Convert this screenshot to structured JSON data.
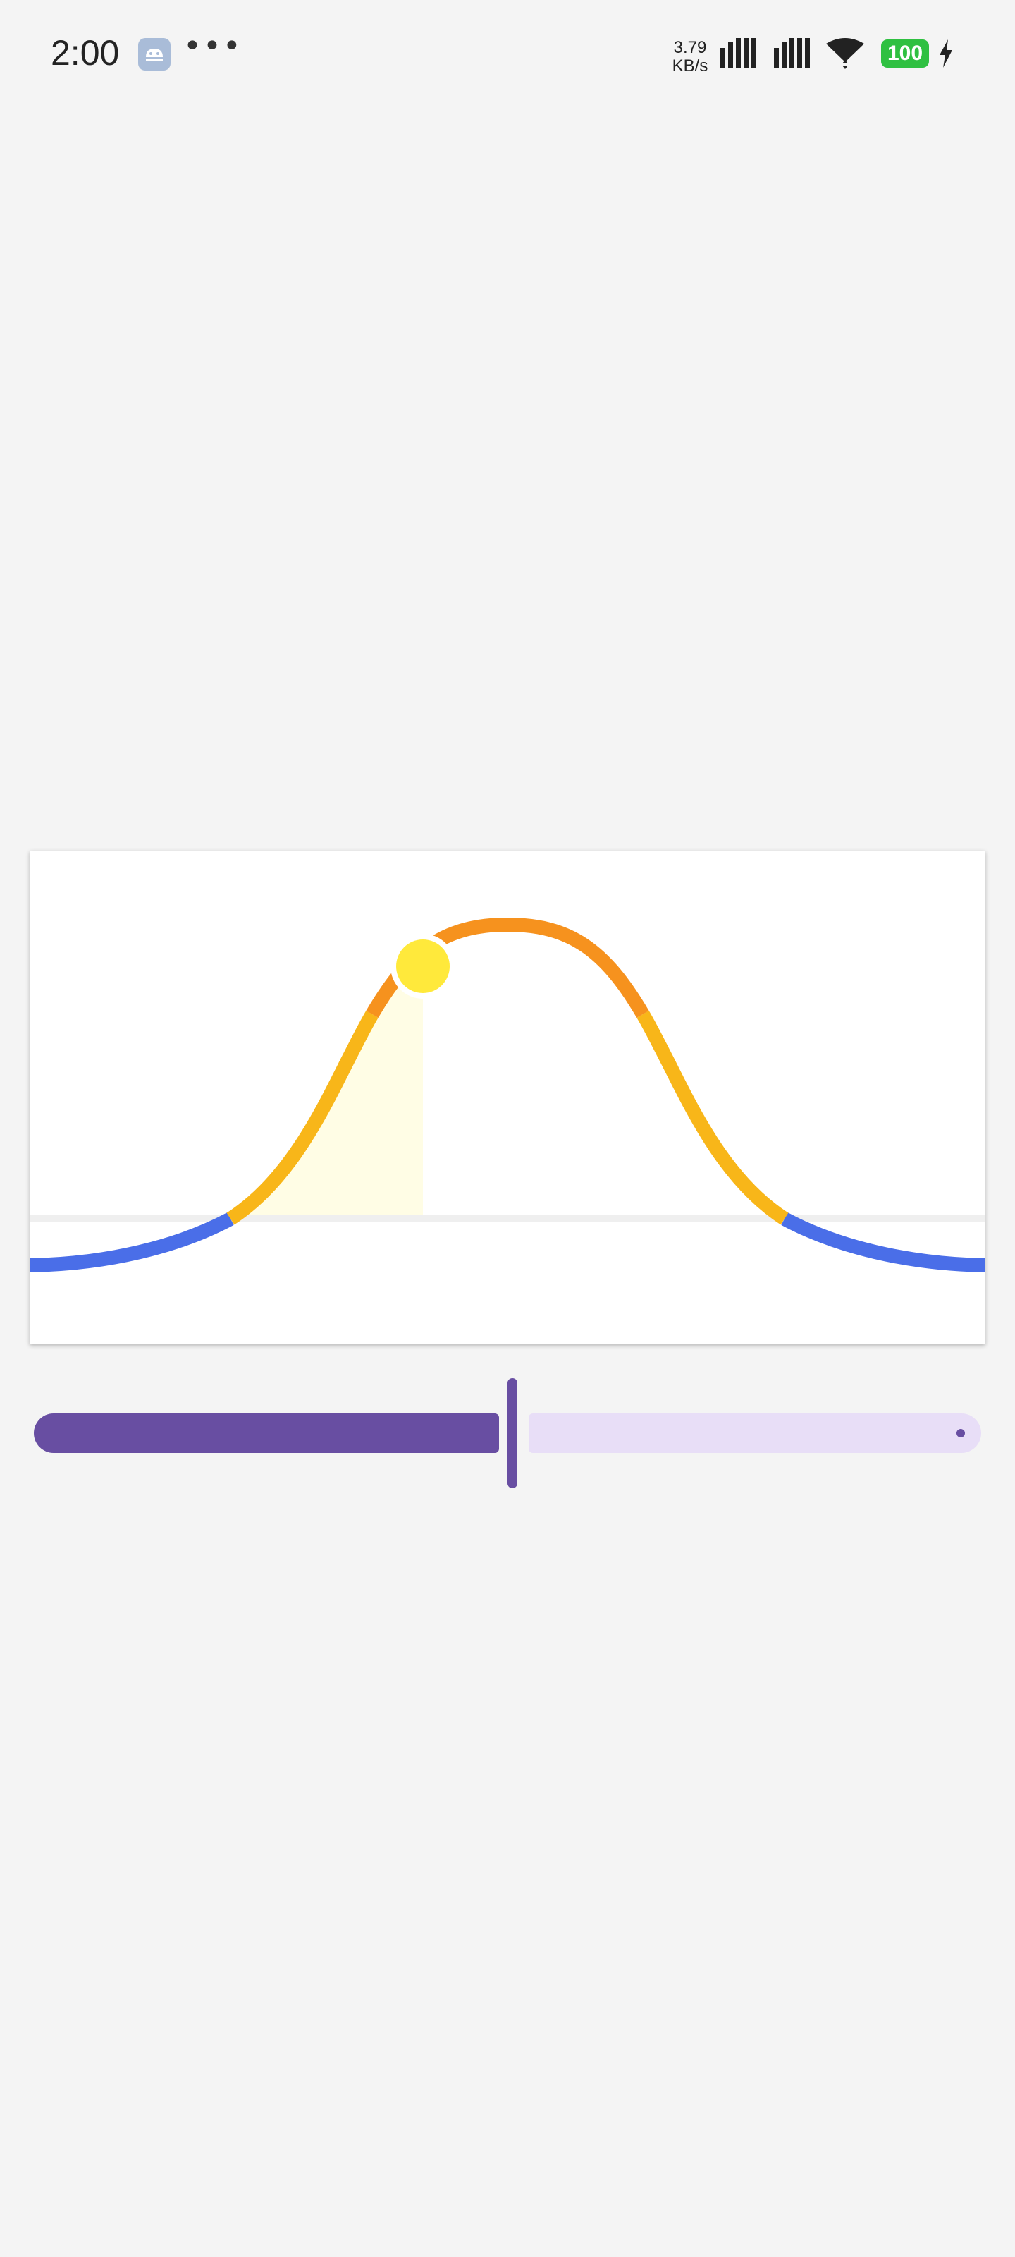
{
  "status_bar": {
    "time": "2:00",
    "overflow": "•••",
    "net_speed_value": "3.79",
    "net_speed_unit": "KB/s",
    "battery": "100",
    "icons": [
      "android-notification-icon",
      "signal-icon",
      "signal-icon",
      "wifi-icon",
      "battery-icon",
      "charging-bolt-icon"
    ]
  },
  "sun_curve": {
    "colors": {
      "night": "#4a6ee8",
      "twilight": "#f8b619",
      "day": "#f6921e",
      "sun": "#ffe93b",
      "fill": "#fffde5",
      "horizon": "#efefef"
    }
  },
  "slider": {
    "value": 0.5,
    "colors": {
      "active": "#684ea2",
      "inactive": "#e8def7"
    }
  }
}
